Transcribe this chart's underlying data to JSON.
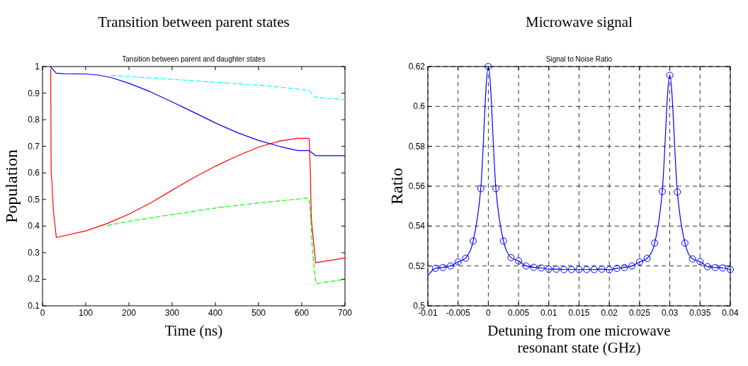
{
  "chart_data": [
    {
      "type": "line",
      "title": "Transition between parent states",
      "subtitle": "Tansition between parent and daughter states",
      "xlabel": "Time (ns)",
      "ylabel": "Population",
      "xlim": [
        0,
        700
      ],
      "xticks": [
        0,
        100,
        200,
        300,
        400,
        500,
        600,
        700
      ],
      "ylim": [
        0.1,
        1
      ],
      "yticks": [
        0.1,
        0.2,
        0.3,
        0.4,
        0.5,
        0.6,
        0.7,
        0.8,
        0.9,
        1
      ],
      "grid": false,
      "series": [
        {
          "color": "#00ffff",
          "line_style": "dashed",
          "x": [
            160,
            200,
            300,
            400,
            500,
            600,
            617,
            630,
            700
          ],
          "values": [
            0.967,
            0.962,
            0.952,
            0.941,
            0.93,
            0.914,
            0.91,
            0.885,
            0.875
          ]
        },
        {
          "color": "#0000ff",
          "line_style": "solid",
          "x": [
            18,
            32,
            50,
            100,
            130,
            160,
            200,
            250,
            300,
            350,
            400,
            450,
            500,
            550,
            590,
            617,
            632,
            700
          ],
          "values": [
            1,
            0.975,
            0.973,
            0.972,
            0.968,
            0.958,
            0.937,
            0.905,
            0.867,
            0.828,
            0.788,
            0.752,
            0.722,
            0.699,
            0.684,
            0.684,
            0.665,
            0.665
          ]
        },
        {
          "color": "#00ff00",
          "line_style": "dashed",
          "x": [
            150,
            200,
            300,
            400,
            500,
            600,
            617,
            620,
            625,
            633,
            700
          ],
          "values": [
            0.402,
            0.418,
            0.443,
            0.468,
            0.487,
            0.503,
            0.505,
            0.45,
            0.3,
            0.183,
            0.2
          ]
        },
        {
          "color": "#ff0000",
          "line_style": "solid",
          "x": [
            19,
            20,
            22,
            25,
            32,
            100,
            150,
            200,
            250,
            300,
            350,
            400,
            450,
            500,
            550,
            590,
            617,
            620,
            622,
            632,
            700
          ],
          "values": [
            0.99,
            0.6,
            0.56,
            0.46,
            0.357,
            0.382,
            0.41,
            0.445,
            0.487,
            0.535,
            0.582,
            0.625,
            0.663,
            0.697,
            0.72,
            0.73,
            0.73,
            0.6,
            0.43,
            0.262,
            0.28
          ]
        }
      ]
    },
    {
      "type": "line",
      "title": "Microwave signal",
      "subtitle": "Signal to Noise Ratio",
      "xlabel": "Detuning from one microwave resonant state (GHz)",
      "ylabel": "Ratio",
      "xlim": [
        -0.01,
        0.04
      ],
      "xticks": [
        -0.01,
        -0.005,
        0,
        0.005,
        0.01,
        0.015,
        0.02,
        0.025,
        0.03,
        0.035,
        0.04
      ],
      "ylim": [
        0.5,
        0.62
      ],
      "yticks": [
        0.5,
        0.52,
        0.54,
        0.56,
        0.58,
        0.6,
        0.62
      ],
      "grid": true,
      "series": [
        {
          "type": "line",
          "color": "#0000ff",
          "line_style": "solid",
          "x": [
            -0.01,
            -0.00875,
            -0.0075,
            -0.00625,
            -0.005,
            -0.00375,
            -0.0025,
            -0.00125,
            0,
            0.00125,
            0.0025,
            0.00375,
            0.005,
            0.00625,
            0.0075,
            0.00875,
            0.01,
            0.01125,
            0.0125,
            0.01375,
            0.015,
            0.01625,
            0.0175,
            0.01875,
            0.02,
            0.02125,
            0.0225,
            0.02375,
            0.025,
            0.02625,
            0.0275,
            0.02875,
            0.03,
            0.03125,
            0.0325,
            0.03375,
            0.035,
            0.03625,
            0.0375,
            0.03875,
            0.04
          ],
          "values": [
            0.515,
            0.5188,
            0.5192,
            0.52,
            0.522,
            0.5239,
            0.5325,
            0.5588,
            0.62,
            0.5588,
            0.5325,
            0.5242,
            0.5225,
            0.52,
            0.5193,
            0.519,
            0.5184,
            0.5184,
            0.5182,
            0.5182,
            0.5182,
            0.5182,
            0.5182,
            0.5184,
            0.5181,
            0.5188,
            0.5192,
            0.52,
            0.522,
            0.5238,
            0.5315,
            0.5573,
            0.6156,
            0.5571,
            0.5315,
            0.5235,
            0.5222,
            0.5196,
            0.5192,
            0.519,
            0.5182
          ]
        },
        {
          "type": "scatter",
          "marker": "circle",
          "color": "#0000ff",
          "x": [
            -0.00875,
            -0.0075,
            -0.00625,
            -0.005,
            -0.00375,
            -0.0025,
            -0.00125,
            0,
            0.00125,
            0.0025,
            0.00375,
            0.005,
            0.00625,
            0.0075,
            0.00875,
            0.01,
            0.01125,
            0.0125,
            0.01375,
            0.015,
            0.01625,
            0.0175,
            0.01875,
            0.02,
            0.02125,
            0.0225,
            0.02375,
            0.025,
            0.02625,
            0.0275,
            0.02875,
            0.03,
            0.03125,
            0.0325,
            0.03375,
            0.035,
            0.03625,
            0.0375,
            0.03875,
            0.04
          ],
          "values": [
            0.5188,
            0.5192,
            0.52,
            0.522,
            0.5239,
            0.5325,
            0.5588,
            0.62,
            0.5588,
            0.5325,
            0.5242,
            0.5225,
            0.52,
            0.5193,
            0.519,
            0.5184,
            0.5184,
            0.5182,
            0.5182,
            0.5182,
            0.5182,
            0.5182,
            0.5184,
            0.5181,
            0.5188,
            0.5192,
            0.52,
            0.522,
            0.5238,
            0.5315,
            0.5573,
            0.6156,
            0.5571,
            0.5315,
            0.5235,
            0.5222,
            0.5196,
            0.5192,
            0.519,
            0.5182
          ]
        }
      ]
    }
  ]
}
